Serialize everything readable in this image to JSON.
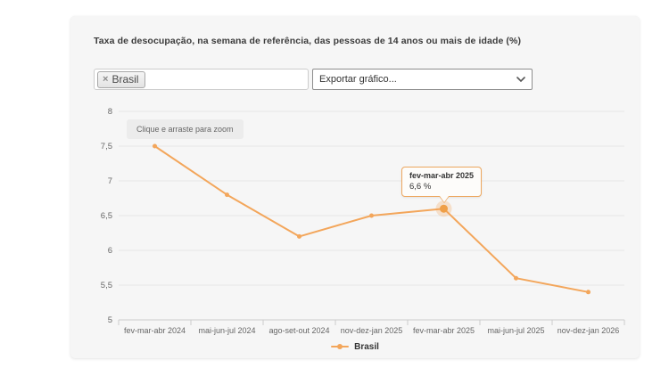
{
  "filters": {
    "region_chip": {
      "remove_icon": "×",
      "label": "Brasil"
    },
    "export_select": {
      "value": "Exportar gráfico..."
    }
  },
  "chart": {
    "zoom_hint": "Clique e arraste para zoom",
    "tooltip": {
      "category": "fev-mar-abr 2025",
      "value": "6,6 %"
    },
    "colors": {
      "series": "#f3a65b",
      "series_highlight": "#ef9f47",
      "tooltip_border": "#eda75f",
      "grid": "#e7e7e7",
      "axis": "#cccccc",
      "tick_text": "#666666",
      "card_background": "#f6f6f6"
    }
  },
  "chart_data": {
    "type": "line",
    "title": "Taxa de desocupação, na semana de referência, das pessoas de 14 anos ou mais de idade (%)",
    "categories": [
      "fev-mar-abr 2024",
      "mai-jun-jul 2024",
      "ago-set-out 2024",
      "nov-dez-jan 2025",
      "fev-mar-abr 2025",
      "mai-jun-jul 2025",
      "nov-dez-jan 2026"
    ],
    "series": [
      {
        "name": "Brasil",
        "color": "#f3a65b",
        "values": [
          7.5,
          6.8,
          6.2,
          6.5,
          6.6,
          5.6,
          5.4
        ]
      }
    ],
    "ylim": [
      5,
      8
    ],
    "ytick_step": 0.5,
    "xlabel": "",
    "ylabel": "",
    "grid": true,
    "legend_position": "bottom",
    "highlighted_point": {
      "series": "Brasil",
      "index": 4,
      "category": "fev-mar-abr 2025",
      "value": 6.6,
      "label": "6,6 %"
    }
  }
}
